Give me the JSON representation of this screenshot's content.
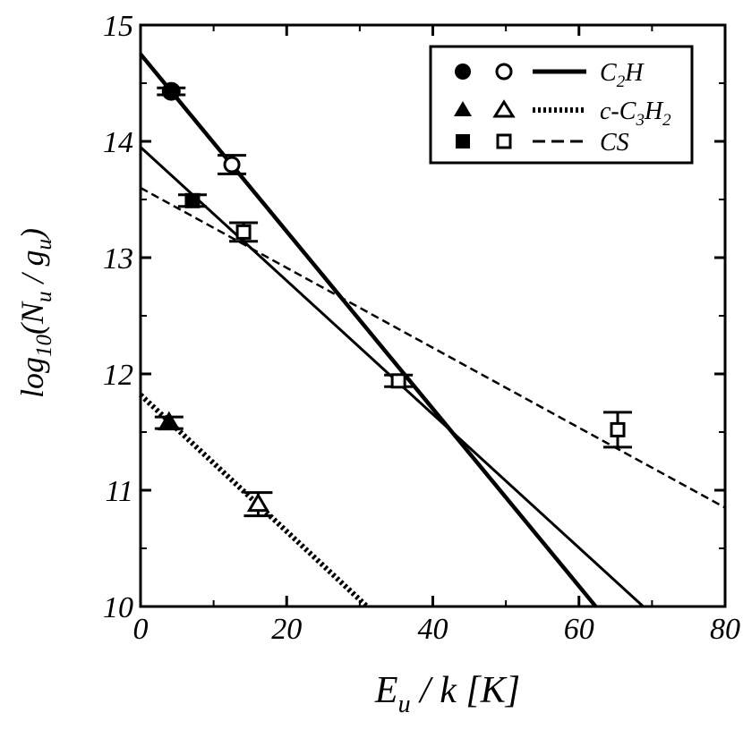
{
  "chart_data": {
    "type": "scatter",
    "xlabel": {
      "main": "E",
      "sub": "u",
      "rest": " / k [K]"
    },
    "ylabel": {
      "pre": "log",
      "sub1": "10",
      "mid": "(N",
      "sub2": "u",
      "mid2": " / g",
      "sub3": "u",
      "post": ")"
    },
    "xlim": [
      0,
      80
    ],
    "ylim": [
      10,
      15
    ],
    "x_ticks": [
      "0",
      "20",
      "40",
      "60",
      "80"
    ],
    "y_ticks": [
      "10",
      "11",
      "12",
      "13",
      "14",
      "15"
    ],
    "legend_position": "top-right",
    "legend": [
      {
        "label": "C",
        "sub1": "2",
        "rest": "H",
        "sub2": "",
        "rest2": "",
        "marker": "circle",
        "line": "solid-thick"
      },
      {
        "label": "c-C",
        "sub1": "3",
        "rest": "H",
        "sub2": "2",
        "rest2": "",
        "marker": "triangle",
        "line": "dotted"
      },
      {
        "label": "CS",
        "sub1": "",
        "rest": "",
        "sub2": "",
        "rest2": "",
        "marker": "square",
        "line": "dashed"
      }
    ],
    "series": [
      {
        "name": "C2H",
        "marker": "circle",
        "points": [
          {
            "x": 4.2,
            "y": 14.43,
            "err": 0.03,
            "filled": true
          },
          {
            "x": 12.5,
            "y": 13.8,
            "err": 0.08,
            "filled": false
          }
        ]
      },
      {
        "name": "c-C3H2",
        "marker": "triangle",
        "points": [
          {
            "x": 3.9,
            "y": 11.58,
            "err": 0.05,
            "filled": true
          },
          {
            "x": 16.1,
            "y": 10.88,
            "err": 0.1,
            "filled": false
          }
        ]
      },
      {
        "name": "CS",
        "marker": "square",
        "points": [
          {
            "x": 7.1,
            "y": 13.49,
            "err": 0.05,
            "filled": true
          },
          {
            "x": 14.1,
            "y": 13.22,
            "err": 0.08,
            "filled": false
          },
          {
            "x": 35.3,
            "y": 11.94,
            "err": 0.05,
            "filled": false
          },
          {
            "x": 65.3,
            "y": 11.52,
            "err": 0.15,
            "filled": false
          }
        ]
      }
    ],
    "fit_lines": [
      {
        "name": "C2H fit",
        "style": "solid-thick",
        "x": [
          0,
          62.3
        ],
        "y": [
          14.75,
          10.0
        ]
      },
      {
        "name": "solid fit",
        "style": "solid",
        "x": [
          0,
          68.8
        ],
        "y": [
          13.95,
          10.0
        ]
      },
      {
        "name": "CS fit",
        "style": "dashed",
        "x": [
          0,
          80
        ],
        "y": [
          13.6,
          10.85
        ]
      },
      {
        "name": "c-C3H2 fit",
        "style": "dotted",
        "x": [
          0,
          31
        ],
        "y": [
          11.82,
          10.0
        ]
      }
    ]
  }
}
